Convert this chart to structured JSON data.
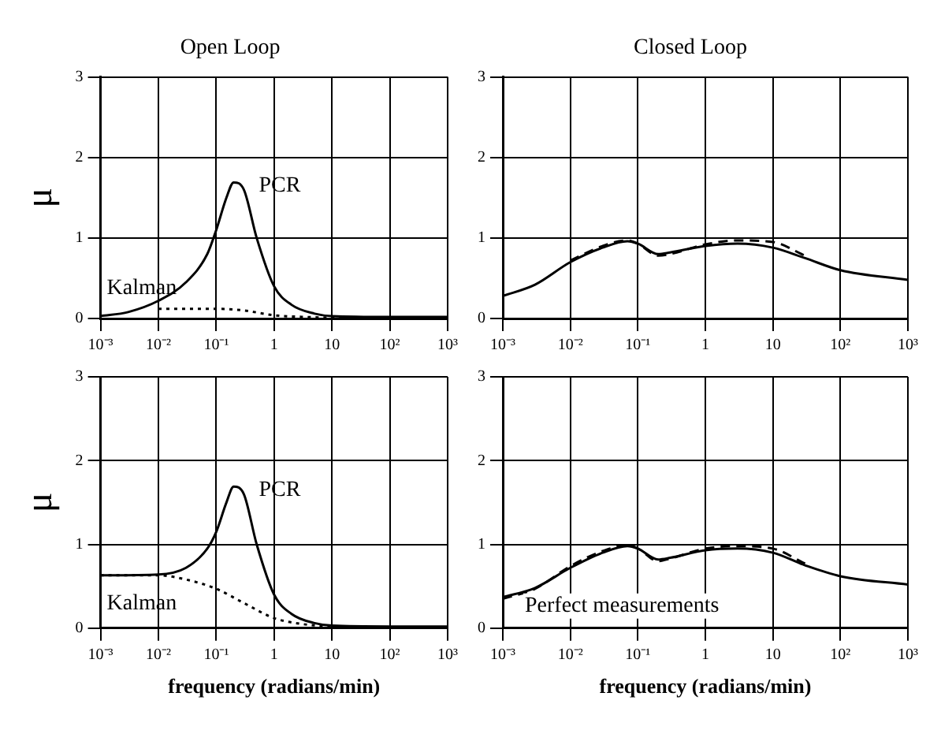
{
  "chart_data": [
    {
      "type": "line",
      "title": "Open Loop",
      "ylabel": "μ",
      "log": "x",
      "grid": true,
      "marker": "none",
      "xlim": [
        0.001,
        1000
      ],
      "ylim": [
        0,
        3
      ],
      "yticks": [
        0,
        1,
        2,
        3
      ],
      "xticks": [
        {
          "value": 0.001,
          "label": "10⁻³"
        },
        {
          "value": 0.01,
          "label": "10⁻²"
        },
        {
          "value": 0.1,
          "label": "10⁻¹"
        },
        {
          "value": 1,
          "label": "1"
        },
        {
          "value": 10,
          "label": "10"
        },
        {
          "value": 100,
          "label": "10²"
        },
        {
          "value": 1000,
          "label": "10³"
        }
      ],
      "series": [
        {
          "name": "PCR",
          "color": "#000000",
          "line_style": "solid",
          "x": [
            0.001,
            0.003,
            0.01,
            0.03,
            0.07,
            0.1,
            0.15,
            0.2,
            0.3,
            0.5,
            1,
            2,
            5,
            10,
            100,
            1000
          ],
          "values": [
            0.03,
            0.08,
            0.22,
            0.45,
            0.8,
            1.1,
            1.5,
            1.69,
            1.6,
            1.0,
            0.4,
            0.17,
            0.06,
            0.03,
            0.02,
            0.02
          ]
        },
        {
          "name": "Kalman",
          "color": "#000000",
          "line_style": "dotted",
          "x": [
            0.01,
            0.03,
            0.1,
            0.3,
            1,
            3,
            10,
            100,
            1000
          ],
          "values": [
            0.12,
            0.12,
            0.12,
            0.1,
            0.04,
            0.02,
            0.01,
            0.0,
            0.0
          ]
        }
      ]
    },
    {
      "type": "line",
      "title": "Closed Loop",
      "log": "x",
      "grid": true,
      "marker": "none",
      "xlim": [
        0.001,
        1000
      ],
      "ylim": [
        0,
        3
      ],
      "yticks": [
        0,
        1,
        2,
        3
      ],
      "xticks": [
        {
          "value": 0.001,
          "label": "10⁻³"
        },
        {
          "value": 0.01,
          "label": "10⁻²"
        },
        {
          "value": 0.1,
          "label": "10⁻¹"
        },
        {
          "value": 1,
          "label": "1"
        },
        {
          "value": 10,
          "label": "10"
        },
        {
          "value": 100,
          "label": "10²"
        },
        {
          "value": 1000,
          "label": "10³"
        }
      ],
      "series": [
        {
          "color": "#000000",
          "line_style": "solid",
          "x": [
            0.001,
            0.003,
            0.01,
            0.03,
            0.07,
            0.1,
            0.2,
            0.3,
            1,
            3,
            10,
            30,
            100,
            1000
          ],
          "values": [
            0.28,
            0.42,
            0.7,
            0.88,
            0.96,
            0.93,
            0.8,
            0.82,
            0.9,
            0.93,
            0.88,
            0.75,
            0.6,
            0.48
          ]
        },
        {
          "color": "#000000",
          "line_style": "dashed",
          "x": [
            0.01,
            0.03,
            0.07,
            0.1,
            0.2,
            0.3,
            1,
            3,
            10,
            30
          ],
          "values": [
            0.72,
            0.9,
            0.97,
            0.93,
            0.78,
            0.8,
            0.92,
            0.97,
            0.95,
            0.78
          ]
        }
      ]
    },
    {
      "type": "line",
      "ylabel": "μ",
      "xlabel": "frequency (radians/min)",
      "log": "x",
      "grid": true,
      "marker": "none",
      "xlim": [
        0.001,
        1000
      ],
      "ylim": [
        0,
        3
      ],
      "yticks": [
        0,
        1,
        2,
        3
      ],
      "xticks": [
        {
          "value": 0.001,
          "label": "10⁻³"
        },
        {
          "value": 0.01,
          "label": "10⁻²"
        },
        {
          "value": 0.1,
          "label": "10⁻¹"
        },
        {
          "value": 1,
          "label": "1"
        },
        {
          "value": 10,
          "label": "10"
        },
        {
          "value": 100,
          "label": "10²"
        },
        {
          "value": 1000,
          "label": "10³"
        }
      ],
      "series": [
        {
          "name": "PCR",
          "color": "#000000",
          "line_style": "solid",
          "x": [
            0.001,
            0.01,
            0.03,
            0.07,
            0.1,
            0.15,
            0.2,
            0.3,
            0.5,
            1,
            2,
            5,
            10,
            100,
            1000
          ],
          "values": [
            0.63,
            0.64,
            0.72,
            0.95,
            1.15,
            1.5,
            1.69,
            1.6,
            1.0,
            0.4,
            0.17,
            0.06,
            0.03,
            0.02,
            0.02
          ]
        },
        {
          "name": "Kalman",
          "color": "#000000",
          "line_style": "dotted",
          "x": [
            0.001,
            0.01,
            0.03,
            0.1,
            0.3,
            1,
            3,
            10,
            100,
            1000
          ],
          "values": [
            0.63,
            0.63,
            0.58,
            0.47,
            0.3,
            0.12,
            0.05,
            0.02,
            0.0,
            0.0
          ]
        }
      ]
    },
    {
      "type": "line",
      "xlabel": "frequency (radians/min)",
      "log": "x",
      "grid": true,
      "marker": "none",
      "xlim": [
        0.001,
        1000
      ],
      "ylim": [
        0,
        3
      ],
      "yticks": [
        0,
        1,
        2,
        3
      ],
      "xticks": [
        {
          "value": 0.001,
          "label": "10⁻³"
        },
        {
          "value": 0.01,
          "label": "10⁻²"
        },
        {
          "value": 0.1,
          "label": "10⁻¹"
        },
        {
          "value": 1,
          "label": "1"
        },
        {
          "value": 10,
          "label": "10"
        },
        {
          "value": 100,
          "label": "10²"
        },
        {
          "value": 1000,
          "label": "10³"
        }
      ],
      "series": [
        {
          "color": "#000000",
          "line_style": "solid",
          "x": [
            0.001,
            0.003,
            0.01,
            0.03,
            0.07,
            0.1,
            0.2,
            0.3,
            1,
            3,
            10,
            30,
            100,
            1000
          ],
          "values": [
            0.37,
            0.48,
            0.72,
            0.9,
            0.98,
            0.95,
            0.82,
            0.84,
            0.93,
            0.95,
            0.9,
            0.75,
            0.62,
            0.52
          ]
        },
        {
          "color": "#000000",
          "line_style": "dashed",
          "x": [
            0.001,
            0.003,
            0.01,
            0.03,
            0.07,
            0.1,
            0.2,
            0.3,
            1,
            3,
            10,
            30
          ],
          "values": [
            0.35,
            0.47,
            0.74,
            0.92,
            0.99,
            0.95,
            0.8,
            0.83,
            0.95,
            0.98,
            0.95,
            0.77
          ]
        }
      ],
      "annotations": [
        "Perfect measurements"
      ]
    }
  ]
}
